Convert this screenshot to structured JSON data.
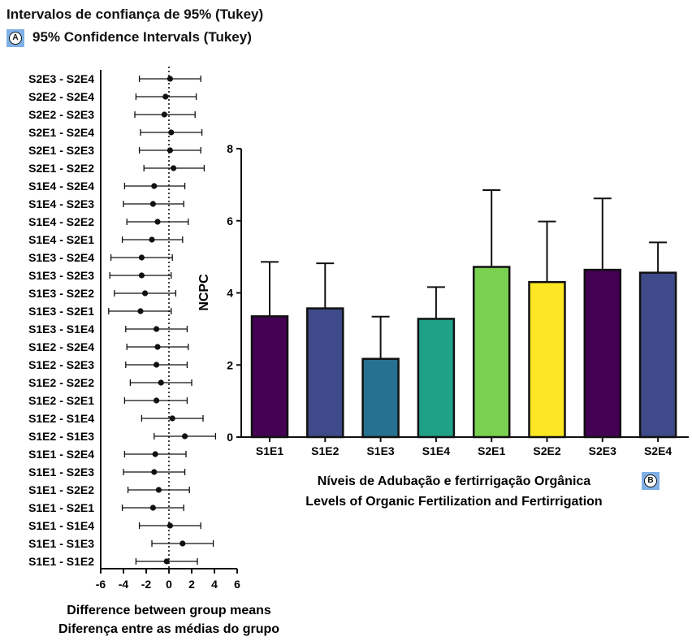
{
  "chart_data": [
    {
      "type": "scatter",
      "panel": "A",
      "title_pt": "Intervalos de confiança de 95% (Tukey)",
      "title_en": "95% Confidence Intervals (Tukey)",
      "xlabel_en": "Difference between group means",
      "xlabel_pt": "Diferença entre as médias do grupo",
      "xlim": [
        -6,
        6
      ],
      "xticks": [
        "-6",
        "-4",
        "-2",
        "0",
        "2",
        "4",
        "6"
      ],
      "reference_line_x": 0,
      "comparisons": [
        {
          "label": "S2E3 - S2E4",
          "mean": 0.1,
          "lower": -2.6,
          "upper": 2.8
        },
        {
          "label": "S2E2 - S2E4",
          "mean": -0.3,
          "lower": -2.9,
          "upper": 2.4
        },
        {
          "label": "S2E2 - S2E3",
          "mean": -0.4,
          "lower": -3.0,
          "upper": 2.3
        },
        {
          "label": "S2E1 - S2E4",
          "mean": 0.2,
          "lower": -2.5,
          "upper": 2.9
        },
        {
          "label": "S2E1 - S2E3",
          "mean": 0.1,
          "lower": -2.6,
          "upper": 2.8
        },
        {
          "label": "S2E1 - S2E2",
          "mean": 0.4,
          "lower": -2.2,
          "upper": 3.1
        },
        {
          "label": "S1E4 - S2E4",
          "mean": -1.3,
          "lower": -3.9,
          "upper": 1.4
        },
        {
          "label": "S1E4 - S2E3",
          "mean": -1.4,
          "lower": -4.0,
          "upper": 1.3
        },
        {
          "label": "S1E4 - S2E2",
          "mean": -1.0,
          "lower": -3.7,
          "upper": 1.7
        },
        {
          "label": "S1E4 - S2E1",
          "mean": -1.5,
          "lower": -4.1,
          "upper": 1.2
        },
        {
          "label": "S1E3 - S2E4",
          "mean": -2.4,
          "lower": -5.1,
          "upper": 0.3
        },
        {
          "label": "S1E3 - S2E3",
          "mean": -2.4,
          "lower": -5.2,
          "upper": 0.2
        },
        {
          "label": "S1E3 - S2E2",
          "mean": -2.1,
          "lower": -4.8,
          "upper": 0.6
        },
        {
          "label": "S1E3 - S2E1",
          "mean": -2.5,
          "lower": -5.3,
          "upper": 0.2
        },
        {
          "label": "S1E3 - S1E4",
          "mean": -1.1,
          "lower": -3.8,
          "upper": 1.6
        },
        {
          "label": "S1E2 - S2E4",
          "mean": -1.0,
          "lower": -3.7,
          "upper": 1.7
        },
        {
          "label": "S1E2 - S2E3",
          "mean": -1.1,
          "lower": -3.8,
          "upper": 1.6
        },
        {
          "label": "S1E2 - S2E2",
          "mean": -0.7,
          "lower": -3.4,
          "upper": 2.0
        },
        {
          "label": "S1E2 - S2E1",
          "mean": -1.1,
          "lower": -3.9,
          "upper": 1.6
        },
        {
          "label": "S1E2 - S1E4",
          "mean": 0.3,
          "lower": -2.4,
          "upper": 3.0
        },
        {
          "label": "S1E2 - S1E3",
          "mean": 1.4,
          "lower": -1.3,
          "upper": 4.1
        },
        {
          "label": "S1E1 - S2E4",
          "mean": -1.2,
          "lower": -3.9,
          "upper": 1.5
        },
        {
          "label": "S1E1 - S2E3",
          "mean": -1.3,
          "lower": -4.0,
          "upper": 1.4
        },
        {
          "label": "S1E1 - S2E2",
          "mean": -0.9,
          "lower": -3.6,
          "upper": 1.8
        },
        {
          "label": "S1E1 - S2E1",
          "mean": -1.4,
          "lower": -4.1,
          "upper": 1.3
        },
        {
          "label": "S1E1 - S1E4",
          "mean": 0.1,
          "lower": -2.6,
          "upper": 2.8
        },
        {
          "label": "S1E1 - S1E3",
          "mean": 1.2,
          "lower": -1.5,
          "upper": 3.9
        },
        {
          "label": "S1E1 - S1E2",
          "mean": -0.2,
          "lower": -2.9,
          "upper": 2.5
        }
      ]
    },
    {
      "type": "bar",
      "panel": "B",
      "ylabel": "NCPC",
      "xlabel_pt": "Níveis de Adubação e fertirrigação Orgânica",
      "xlabel_en": "Levels of Organic Fertilization and Fertirrigation",
      "ylim": [
        0,
        8
      ],
      "yticks": [
        "0",
        "2",
        "4",
        "6",
        "8"
      ],
      "categories": [
        "S1E1",
        "S1E2",
        "S1E3",
        "S1E4",
        "S2E1",
        "S2E2",
        "S2E3",
        "S2E4"
      ],
      "values": [
        3.35,
        3.57,
        2.17,
        3.28,
        4.72,
        4.3,
        4.64,
        4.56
      ],
      "error_upper": [
        4.86,
        4.82,
        3.34,
        4.16,
        6.85,
        5.98,
        6.62,
        5.4
      ],
      "colors": [
        "#440154",
        "#3e4a89",
        "#26718f",
        "#1fa187",
        "#7ad151",
        "#fde725",
        "#440154",
        "#3e4a89"
      ]
    }
  ],
  "badges": {
    "a": "A",
    "b": "B"
  }
}
